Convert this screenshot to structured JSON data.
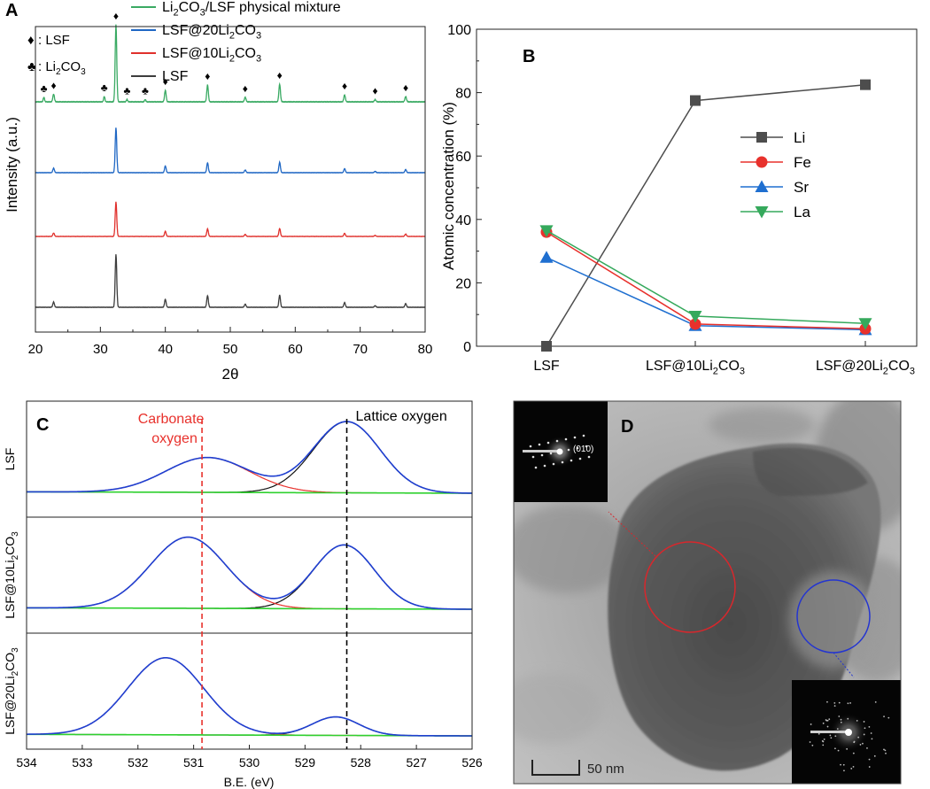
{
  "chart_data": [
    {
      "panel": "A",
      "type": "line",
      "xlabel": "2θ",
      "ylabel": "Intensity (a.u.)",
      "xlim": [
        20,
        80
      ],
      "xticks": [
        20,
        30,
        40,
        50,
        60,
        70,
        80
      ],
      "legend": {
        "location": "top",
        "series": [
          {
            "name": "Li2CO3/LSF physical mixture",
            "parts": [
              "Li",
              "2",
              "CO",
              "3",
              "/LSF physical mixture"
            ],
            "color": "#3aaa63"
          },
          {
            "name": "LSF@20Li2CO3",
            "parts": [
              "LSF@20Li",
              "2",
              "CO",
              "3"
            ],
            "color": "#1f67c4"
          },
          {
            "name": "LSF@10Li2CO3",
            "parts": [
              "LSF@10Li",
              "2",
              "CO",
              "3"
            ],
            "color": "#e0302c"
          },
          {
            "name": "LSF",
            "parts": [
              "LSF"
            ],
            "color": "#3d3d3d"
          }
        ]
      },
      "markers": [
        {
          "symbol": "♦",
          "label": "LSF",
          "label_parts": [
            ": LSF"
          ]
        },
        {
          "symbol": "♣",
          "label": "Li2CO3",
          "label_parts": [
            ": Li",
            "2",
            "CO",
            "3"
          ]
        }
      ],
      "lsf_peaks_2theta": [
        22.8,
        32.4,
        40.0,
        46.5,
        52.3,
        57.6,
        67.6,
        72.3,
        77.0
      ],
      "lsf_peak_heights": [
        0.1,
        1.0,
        0.15,
        0.22,
        0.06,
        0.23,
        0.09,
        0.03,
        0.07
      ],
      "li2co3_peaks_2theta": [
        21.3,
        30.6,
        34.1,
        36.9
      ],
      "li2co3_peak_heights": [
        0.06,
        0.07,
        0.03,
        0.03
      ],
      "annotated_peaks": [
        {
          "symbol": "♣",
          "x": 21.3
        },
        {
          "symbol": "♦",
          "x": 22.8
        },
        {
          "symbol": "♣",
          "x": 30.6
        },
        {
          "symbol": "♦",
          "x": 32.4
        },
        {
          "symbol": "♣",
          "x": 34.1
        },
        {
          "symbol": "♣",
          "x": 36.9
        },
        {
          "symbol": "♦",
          "x": 40.0
        },
        {
          "symbol": "♦",
          "x": 46.5
        },
        {
          "symbol": "♦",
          "x": 52.3
        },
        {
          "symbol": "♦",
          "x": 57.6
        },
        {
          "symbol": "♦",
          "x": 67.6
        },
        {
          "symbol": "♦",
          "x": 72.3
        },
        {
          "symbol": "♦",
          "x": 77.0
        }
      ],
      "series": [
        {
          "name": "LSF",
          "color": "#3d3d3d",
          "offset": 0.0,
          "scale": 1.0,
          "li2co3": false
        },
        {
          "name": "LSF@10Li2CO3",
          "color": "#e0302c",
          "offset": 1.0,
          "scale": 0.65,
          "li2co3": false
        },
        {
          "name": "LSF@20Li2CO3",
          "color": "#1f67c4",
          "offset": 1.9,
          "scale": 0.85,
          "li2co3": false
        },
        {
          "name": "Li2CO3/LSF physical mixture",
          "color": "#3aaa63",
          "offset": 2.9,
          "scale": 1.45,
          "li2co3": true
        }
      ]
    },
    {
      "panel": "B",
      "type": "line",
      "xlabel": "",
      "ylabel": "Atomic concentration (%)",
      "ylim": [
        0,
        100
      ],
      "yticks": [
        0,
        20,
        40,
        60,
        80,
        100
      ],
      "categories": [
        "LSF",
        "LSF@10Li2CO3",
        "LSF@20Li2CO3"
      ],
      "category_parts": [
        [
          "LSF"
        ],
        [
          "LSF@10Li",
          "2",
          "CO",
          "3"
        ],
        [
          "LSF@20Li",
          "2",
          "CO",
          "3"
        ]
      ],
      "legend_location": "center-right",
      "series": [
        {
          "name": "Li",
          "marker": "square",
          "color": "#4d4d4d",
          "values": [
            0,
            77.5,
            82.5
          ]
        },
        {
          "name": "Fe",
          "marker": "circle",
          "color": "#e8312c",
          "values": [
            36,
            7,
            5.5
          ]
        },
        {
          "name": "Sr",
          "marker": "triangle-up",
          "color": "#1f6fd0",
          "values": [
            28,
            6.5,
            5.2
          ]
        },
        {
          "name": "La",
          "marker": "triangle-down",
          "color": "#35a95c",
          "values": [
            36.5,
            9.5,
            7.2
          ]
        }
      ]
    },
    {
      "panel": "C",
      "type": "line",
      "xlabel": "B.E. (eV)",
      "xlim": [
        534,
        526
      ],
      "xticks": [
        534,
        533,
        532,
        531,
        530,
        529,
        528,
        527,
        526
      ],
      "annotations": [
        {
          "text": "Carbonate oxygen",
          "lines": [
            "Carbonate",
            "oxygen"
          ],
          "x": 530.85,
          "color": "#e8312c",
          "line_style": "dashed"
        },
        {
          "text": "Lattice oxygen",
          "lines": [
            "Lattice oxygen"
          ],
          "x": 528.25,
          "color": "#000000",
          "line_style": "dashed"
        }
      ],
      "series_colors": {
        "envelope": "#1f3fd0",
        "carbonate": "#e8312c",
        "lattice": "#111111",
        "background": "#2fd12f"
      },
      "subplots": [
        {
          "label": "LSF",
          "label_parts": [
            "LSF"
          ],
          "carbonate": {
            "center": 530.75,
            "amp": 0.48,
            "sigma": 0.75
          },
          "lattice": {
            "center": 528.25,
            "amp": 0.98,
            "sigma": 0.6
          },
          "background": [
            0.02,
            0.0
          ]
        },
        {
          "label": "LSF@10Li2CO3",
          "label_parts": [
            "LSF@10Li",
            "2",
            "CO",
            "3"
          ],
          "carbonate": {
            "center": 531.1,
            "amp": 0.98,
            "sigma": 0.68
          },
          "lattice": {
            "center": 528.3,
            "amp": 0.88,
            "sigma": 0.55
          },
          "background": [
            0.02,
            0.0
          ]
        },
        {
          "label": "LSF@20Li2CO3",
          "label_parts": [
            "LSF@20Li",
            "2",
            "CO",
            "3"
          ],
          "carbonate": {
            "center": 531.5,
            "amp": 1.0,
            "sigma": 0.68
          },
          "lattice": {
            "center": 528.45,
            "amp": 0.24,
            "sigma": 0.42
          },
          "background": [
            0.02,
            0.0
          ]
        }
      ]
    }
  ],
  "panel_labels": {
    "a": "A",
    "b": "B",
    "c": "C",
    "d": "D"
  },
  "tem": {
    "saed_label": "(010)",
    "scale_bar_label": "50 nm",
    "circle_colors": {
      "red": "#d8272c",
      "blue": "#2435d0"
    }
  }
}
